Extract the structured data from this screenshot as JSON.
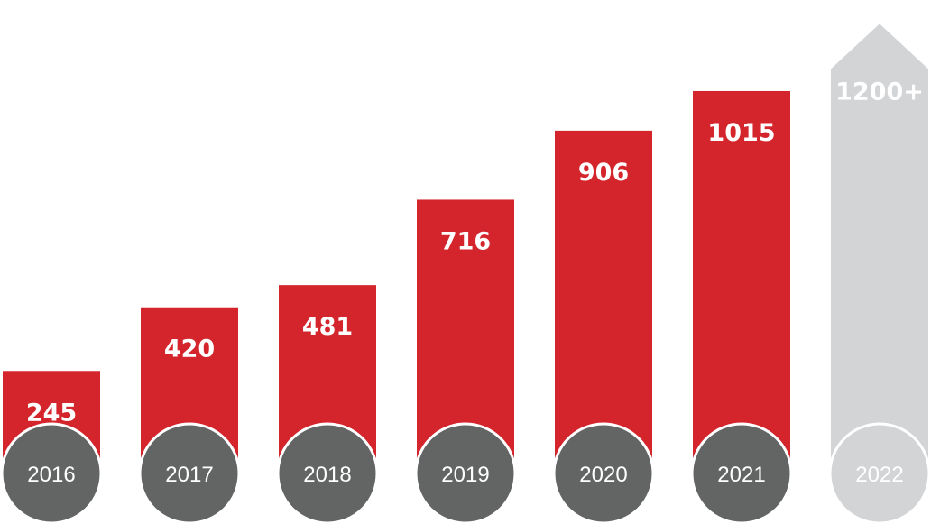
{
  "chart_data": {
    "type": "bar",
    "categories": [
      "2016",
      "2017",
      "2018",
      "2019",
      "2020",
      "2021",
      "2022"
    ],
    "values": [
      245,
      420,
      481,
      716,
      906,
      1015,
      1200
    ],
    "value_labels": [
      "245",
      "420",
      "481",
      "716",
      "906",
      "1015",
      "1200+"
    ],
    "projected": [
      false,
      false,
      false,
      false,
      false,
      false,
      true
    ],
    "title": "",
    "xlabel": "",
    "ylabel": "",
    "grid": false,
    "colors": {
      "actual_bar": "#d4252c",
      "projected_bar": "#d3d4d6",
      "actual_circle": "#636464",
      "projected_circle": "#d3d4d6",
      "label_text": "#ffffff"
    }
  }
}
